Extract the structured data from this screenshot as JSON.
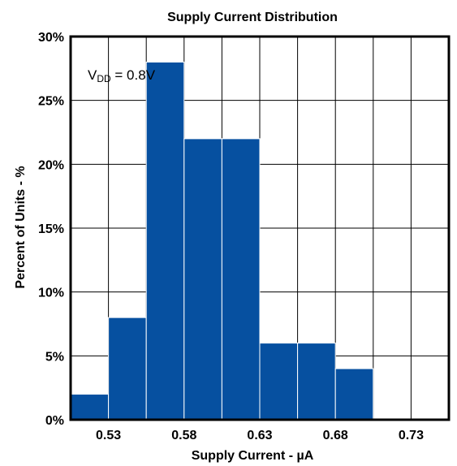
{
  "chart_data": {
    "type": "bar",
    "title": "Supply Current Distribution",
    "xlabel": "Supply Current - µA",
    "ylabel": "Percent of Units - %",
    "x_tick_labels": [
      "0.53",
      "0.58",
      "0.63",
      "0.68",
      "0.73"
    ],
    "x_ticks": [
      0.53,
      0.58,
      0.63,
      0.68,
      0.73
    ],
    "y_tick_labels": [
      "0%",
      "5%",
      "10%",
      "15%",
      "20%",
      "25%",
      "30%"
    ],
    "y_ticks": [
      0,
      5,
      10,
      15,
      20,
      25,
      30
    ],
    "xlim": [
      0.505,
      0.755
    ],
    "ylim": [
      0,
      30
    ],
    "bin_width": 0.025,
    "bins": [
      {
        "x": 0.5175,
        "value": 2
      },
      {
        "x": 0.5425,
        "value": 8
      },
      {
        "x": 0.5675,
        "value": 28
      },
      {
        "x": 0.5925,
        "value": 22
      },
      {
        "x": 0.6175,
        "value": 22
      },
      {
        "x": 0.6425,
        "value": 6
      },
      {
        "x": 0.6675,
        "value": 6
      },
      {
        "x": 0.6925,
        "value": 4
      }
    ],
    "annotation": {
      "main": "V",
      "sub": "DD",
      "rest": " = 0.8V"
    },
    "grid": true,
    "bar_color": "#0650A0"
  }
}
